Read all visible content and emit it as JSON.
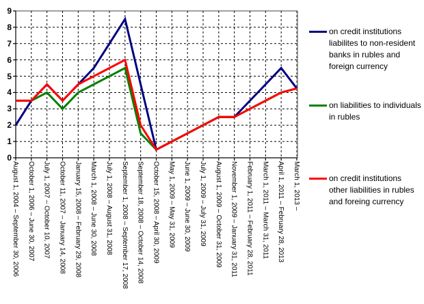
{
  "chart_data": {
    "type": "line",
    "title": "",
    "categories": [
      "August 1, 2004 – September 30, 2006",
      "October 1, 2006 – June 30, 2007",
      "July 1, 2007 – October 10, 2007",
      "October 11, 2007 – January 14, 2008",
      "January 15, 2008 – February 29, 2008",
      "March 1, 2008 – June 30, 2008",
      "July 1, 2008 – August 31, 2008",
      "September 1, 2008 – September 17, 2008",
      "September 18, 2008 – October 14, 2008",
      "October 15, 2008 – April 30, 2009",
      "May 1, 2009 – May 31, 2009",
      "June 1, 2009 – June 30, 2009",
      "July 1, 2009 – July 31, 2009",
      "August 1, 2009 – October 31, 2009",
      "November 1, 2009 – January 31, 2011",
      "February 1, 2011 – February 28, 2011",
      "March 1, 2011 – March 31, 2011",
      "April 1, 2011 – February 28, 2013",
      "March 1, 2013 –"
    ],
    "y_ticks": [
      "0",
      "1",
      "2",
      "3",
      "4",
      "5",
      "6",
      "7",
      "8",
      "9"
    ],
    "ylim": [
      0,
      9
    ],
    "grid": true,
    "legend_position": "right",
    "series": [
      {
        "name": "on credit institutions liabilites to non-resident banks in rubles and foreign currency",
        "color": "#000080",
        "values": [
          2,
          3.5,
          4.5,
          3.5,
          4.5,
          5.5,
          7,
          8.5,
          4.5,
          0.5,
          1,
          1.5,
          2,
          2.5,
          2.5,
          3.5,
          4.5,
          5.5,
          4.25
        ]
      },
      {
        "name": "on liabilities to individuals in rubles",
        "color": "#008000",
        "values": [
          3.5,
          3.5,
          4,
          3,
          4,
          4.5,
          5,
          5.5,
          1.5,
          0.5,
          1,
          1.5,
          2,
          2.5,
          2.5,
          3,
          3.5,
          4,
          4.25
        ]
      },
      {
        "name": "on credit institutions other liabilities in rubles and foreing currency",
        "color": "#ff0000",
        "values": [
          3.5,
          3.5,
          4.5,
          3.5,
          4.5,
          5,
          5.5,
          6,
          2,
          0.5,
          1,
          1.5,
          2,
          2.5,
          2.5,
          3,
          3.5,
          4,
          4.25
        ]
      }
    ],
    "colors": {
      "gridline": "#000000",
      "plot_border": "#808080",
      "axis": "#000000",
      "background": "#ffffff"
    }
  }
}
